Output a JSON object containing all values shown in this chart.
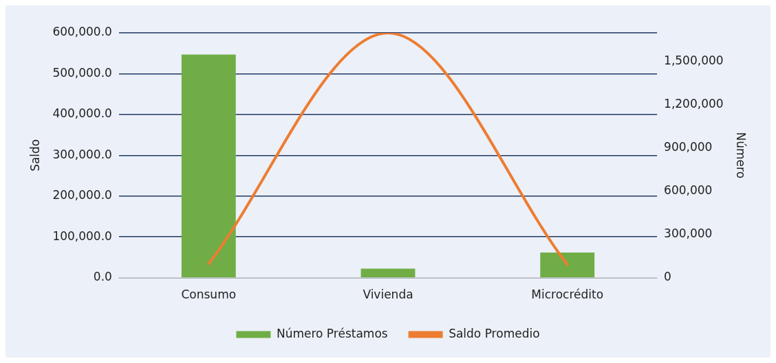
{
  "chart_data": {
    "type": "bar",
    "categories": [
      "Consumo",
      "Vivienda",
      "Microcrédito"
    ],
    "ylabel": "Saldo",
    "y2label": "Número",
    "ylim": [
      0,
      600000
    ],
    "yticks": [
      {
        "value": 0,
        "label": "0.0"
      },
      {
        "value": 100000,
        "label": "100,000.0"
      },
      {
        "value": 200000,
        "label": "200,000.0"
      },
      {
        "value": 300000,
        "label": "300,000.0"
      },
      {
        "value": 400000,
        "label": "400,000.0"
      },
      {
        "value": 500000,
        "label": "500,000.0"
      },
      {
        "value": 600000,
        "label": "600,000.0"
      }
    ],
    "y2lim": [
      0,
      1700000
    ],
    "y2ticks": [
      {
        "value": 0,
        "label": "0"
      },
      {
        "value": 300000,
        "label": "300,000"
      },
      {
        "value": 600000,
        "label": "600,000"
      },
      {
        "value": 900000,
        "label": "900,000"
      },
      {
        "value": 1200000,
        "label": "1,200,000"
      },
      {
        "value": 1500000,
        "label": "1,500,000"
      }
    ],
    "grid": "y",
    "legend": "bottom",
    "series": [
      {
        "name": "Número Préstamos",
        "axis": "y2",
        "color": "#70ad47",
        "values": [
          1550000,
          63000,
          175000
        ]
      },
      {
        "name": "Saldo Promedio",
        "type": "line",
        "axis": "y",
        "color": "#ed7d31",
        "values": [
          34000,
          600000,
          32000
        ]
      }
    ]
  }
}
